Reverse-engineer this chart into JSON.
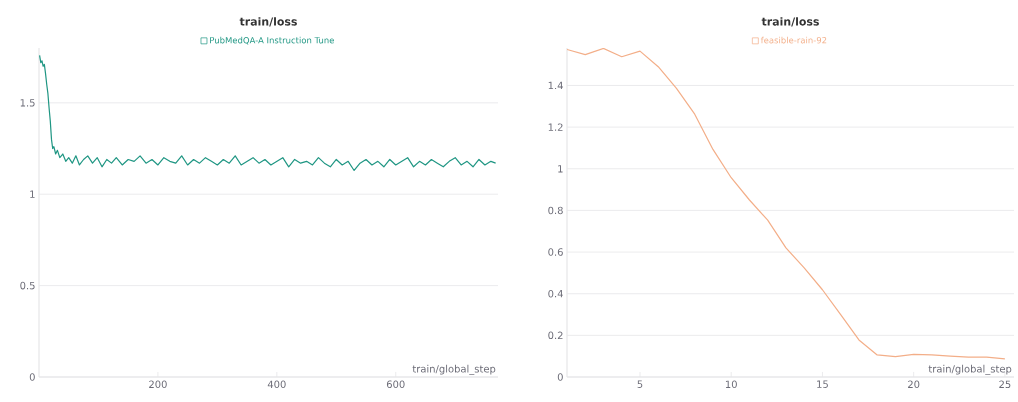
{
  "chart_data": [
    {
      "type": "line",
      "title": "train/loss",
      "xlabel": "train/global_step",
      "xlim": [
        0,
        772
      ],
      "ylim": [
        0,
        1.8
      ],
      "xticks": [
        200,
        400,
        600
      ],
      "yticks": [
        0,
        0.5,
        1,
        1.5
      ],
      "grid": "y",
      "legend": "top",
      "series": [
        {
          "name": "PubMedQA-A Instruction Tune",
          "color": "#1f9683",
          "x": [
            1,
            3,
            5,
            7,
            9,
            11,
            13,
            15,
            17,
            19,
            21,
            23,
            25,
            28,
            31,
            35,
            40,
            45,
            50,
            56,
            62,
            68,
            75,
            82,
            90,
            98,
            106,
            114,
            122,
            130,
            140,
            150,
            160,
            170,
            180,
            190,
            200,
            210,
            220,
            230,
            240,
            250,
            260,
            270,
            280,
            290,
            300,
            310,
            320,
            330,
            340,
            350,
            360,
            370,
            380,
            390,
            400,
            410,
            420,
            430,
            440,
            450,
            460,
            470,
            480,
            490,
            500,
            510,
            520,
            530,
            540,
            550,
            560,
            570,
            580,
            590,
            600,
            610,
            620,
            630,
            640,
            650,
            660,
            670,
            680,
            690,
            700,
            710,
            720,
            730,
            740,
            750,
            760,
            768
          ],
          "values": [
            1.76,
            1.72,
            1.73,
            1.7,
            1.71,
            1.66,
            1.6,
            1.55,
            1.47,
            1.4,
            1.3,
            1.25,
            1.26,
            1.22,
            1.24,
            1.2,
            1.22,
            1.18,
            1.2,
            1.17,
            1.21,
            1.16,
            1.19,
            1.21,
            1.17,
            1.2,
            1.15,
            1.19,
            1.17,
            1.2,
            1.16,
            1.19,
            1.18,
            1.21,
            1.17,
            1.19,
            1.16,
            1.2,
            1.18,
            1.17,
            1.21,
            1.16,
            1.19,
            1.17,
            1.2,
            1.18,
            1.16,
            1.19,
            1.17,
            1.21,
            1.16,
            1.18,
            1.2,
            1.17,
            1.19,
            1.16,
            1.18,
            1.2,
            1.15,
            1.19,
            1.17,
            1.18,
            1.16,
            1.2,
            1.17,
            1.15,
            1.19,
            1.16,
            1.18,
            1.13,
            1.17,
            1.19,
            1.16,
            1.18,
            1.15,
            1.19,
            1.16,
            1.18,
            1.2,
            1.15,
            1.18,
            1.16,
            1.19,
            1.17,
            1.15,
            1.18,
            1.2,
            1.16,
            1.18,
            1.15,
            1.19,
            1.16,
            1.18,
            1.17
          ]
        }
      ]
    },
    {
      "type": "line",
      "title": "train/loss",
      "xlabel": "train/global_step",
      "xlim": [
        1,
        25.5
      ],
      "ylim": [
        0,
        1.58
      ],
      "xticks": [
        5,
        10,
        15,
        20,
        25
      ],
      "yticks": [
        0,
        0.2,
        0.4,
        0.6,
        0.8,
        1,
        1.2,
        1.4
      ],
      "grid": "y",
      "legend": "top",
      "series": [
        {
          "name": "feasible-rain-92",
          "color": "#f3ae88",
          "x": [
            1,
            2,
            3,
            4,
            5,
            6,
            7,
            8,
            9,
            10,
            11,
            12,
            13,
            14,
            15,
            16,
            17,
            18,
            19,
            20,
            21,
            22,
            23,
            24,
            25
          ],
          "values": [
            1.573,
            1.548,
            1.578,
            1.538,
            1.565,
            1.49,
            1.386,
            1.262,
            1.093,
            0.957,
            0.85,
            0.753,
            0.62,
            0.524,
            0.419,
            0.3,
            0.178,
            0.106,
            0.098,
            0.109,
            0.106,
            0.1,
            0.095,
            0.095,
            0.087
          ]
        }
      ]
    }
  ]
}
